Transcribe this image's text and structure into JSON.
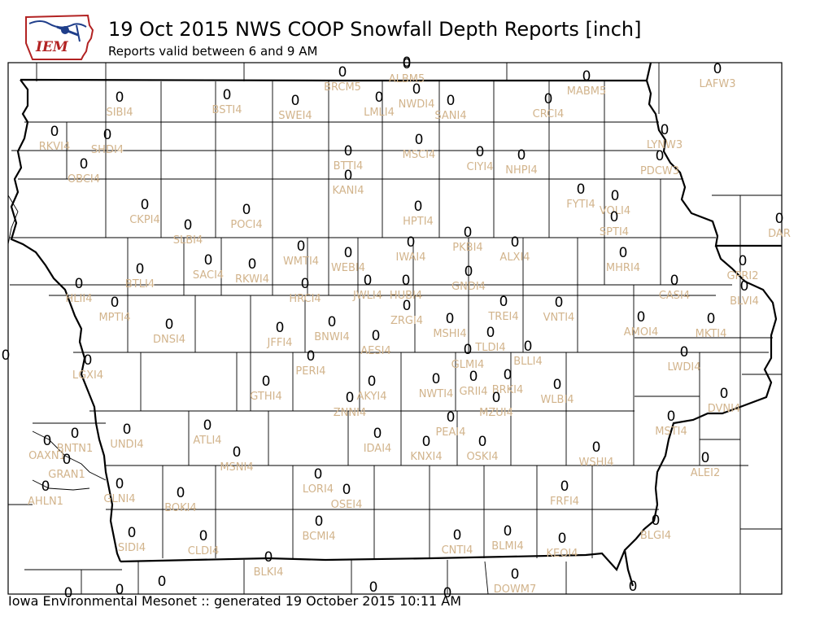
{
  "header": {
    "logo_text": "IEM",
    "title": "19 Oct 2015 NWS COOP Snowfall Depth Reports [inch]",
    "subtitle": "Reports valid between 6 and 9 AM"
  },
  "footer": "Iowa Environmental Mesonet :: generated 19 October 2015 10:11 AM",
  "colors": {
    "station_label": "#d2b48c",
    "value": "#000000",
    "border": "#000000"
  },
  "stations": [
    {
      "id": "ALBM5",
      "value": "0"
    },
    {
      "id": "BRCM5",
      "value": "0"
    },
    {
      "id": "MABM5",
      "value": "0"
    },
    {
      "id": "LAFW3",
      "value": "0"
    },
    {
      "id": "SIBI4",
      "value": "0"
    },
    {
      "id": "BSTI4",
      "value": "0"
    },
    {
      "id": "SWEI4",
      "value": "0"
    },
    {
      "id": "LMLI4",
      "value": "0"
    },
    {
      "id": "NWDI4",
      "value": "0"
    },
    {
      "id": "SANI4",
      "value": "0"
    },
    {
      "id": "CRCI4",
      "value": "0"
    },
    {
      "id": "RKVI4",
      "value": "0"
    },
    {
      "id": "SHDI4",
      "value": "0"
    },
    {
      "id": "LYNW3",
      "value": "0"
    },
    {
      "id": "MSCI4",
      "value": "0"
    },
    {
      "id": "BTTI4",
      "value": "0"
    },
    {
      "id": "CIYI4",
      "value": "0"
    },
    {
      "id": "NHPI4",
      "value": "0"
    },
    {
      "id": "PDCW3",
      "value": "0"
    },
    {
      "id": "OBCI4",
      "value": "0"
    },
    {
      "id": "KANI4",
      "value": "0"
    },
    {
      "id": "FYTI4",
      "value": "0"
    },
    {
      "id": "VOLI4",
      "value": "0"
    },
    {
      "id": "CKPI4",
      "value": "0"
    },
    {
      "id": "POCI4",
      "value": "0"
    },
    {
      "id": "HPTI4",
      "value": "0"
    },
    {
      "id": "DAR",
      "value": "0"
    },
    {
      "id": "SLBI4",
      "value": "0"
    },
    {
      "id": "SPTI4",
      "value": "0"
    },
    {
      "id": "PKBI4",
      "value": "0"
    },
    {
      "id": "WMTI4",
      "value": "0"
    },
    {
      "id": "IWAI4",
      "value": "0"
    },
    {
      "id": "ALXI4",
      "value": "0"
    },
    {
      "id": "SACI4",
      "value": "0"
    },
    {
      "id": "WEBI4",
      "value": "0"
    },
    {
      "id": "RKWI4",
      "value": "0"
    },
    {
      "id": "MHRI4",
      "value": "0"
    },
    {
      "id": "GPRI2",
      "value": "0"
    },
    {
      "id": "BTLI4",
      "value": "0"
    },
    {
      "id": "GNDI4",
      "value": "0"
    },
    {
      "id": "HLII4",
      "value": "0"
    },
    {
      "id": "HRCI4",
      "value": "0"
    },
    {
      "id": "JWLI4",
      "value": "0"
    },
    {
      "id": "HUBI4",
      "value": "0"
    },
    {
      "id": "CASI4",
      "value": "0"
    },
    {
      "id": "BLVI4",
      "value": "0"
    },
    {
      "id": "MPTI4",
      "value": "0"
    },
    {
      "id": "TREI4",
      "value": "0"
    },
    {
      "id": "VNTI4",
      "value": "0"
    },
    {
      "id": "ZRGI4",
      "value": "0"
    },
    {
      "id": "AMOI4",
      "value": "0"
    },
    {
      "id": "DNSI4",
      "value": "0"
    },
    {
      "id": "BNWI4",
      "value": "0"
    },
    {
      "id": "MSHI4",
      "value": "0"
    },
    {
      "id": "MKTI4",
      "value": "0"
    },
    {
      "id": "JFFI4",
      "value": "0"
    },
    {
      "id": "AESI4",
      "value": "0"
    },
    {
      "id": "TLDI4",
      "value": "0"
    },
    {
      "id": "BLLI4",
      "value": "0"
    },
    {
      "id": "LWDI4",
      "value": "0"
    },
    {
      "id": "LGXI4",
      "value": "0"
    },
    {
      "id": "PERI4",
      "value": "0"
    },
    {
      "id": "GLMI4",
      "value": "0"
    },
    {
      "id": "GTHI4",
      "value": "0"
    },
    {
      "id": "AKYI4",
      "value": "0"
    },
    {
      "id": "NWTI4",
      "value": "0"
    },
    {
      "id": "GRII4",
      "value": "0"
    },
    {
      "id": "BRKI4",
      "value": "0"
    },
    {
      "id": "WLBI4",
      "value": "0"
    },
    {
      "id": "ZNNI4",
      "value": "0"
    },
    {
      "id": "MZUI4",
      "value": "0"
    },
    {
      "id": "DVNI4",
      "value": "0"
    },
    {
      "id": "UNDI4",
      "value": "0"
    },
    {
      "id": "ATLI4",
      "value": "0"
    },
    {
      "id": "PEAI4",
      "value": "0"
    },
    {
      "id": "MSTI4",
      "value": "0"
    },
    {
      "id": "BNTN1",
      "value": "0"
    },
    {
      "id": "IDAI4",
      "value": "0"
    },
    {
      "id": "OAXN1",
      "value": "0"
    },
    {
      "id": "KNXI4",
      "value": "0"
    },
    {
      "id": "OSKI4",
      "value": "0"
    },
    {
      "id": "MSNI4",
      "value": "0"
    },
    {
      "id": "WSHI4",
      "value": "0"
    },
    {
      "id": "GRAN1",
      "value": "0"
    },
    {
      "id": "ALEI2",
      "value": "0"
    },
    {
      "id": "LORI4",
      "value": "0"
    },
    {
      "id": "GLNI4",
      "value": "0"
    },
    {
      "id": "OSEI4",
      "value": "0"
    },
    {
      "id": "FRFI4",
      "value": "0"
    },
    {
      "id": "AHLN1",
      "value": "0"
    },
    {
      "id": "BOKI4",
      "value": "0"
    },
    {
      "id": "BLGI4",
      "value": "0"
    },
    {
      "id": "BCMI4",
      "value": "0"
    },
    {
      "id": "SIDI4",
      "value": "0"
    },
    {
      "id": "CLDI4",
      "value": "0"
    },
    {
      "id": "BLMI4",
      "value": "0"
    },
    {
      "id": "CNTI4",
      "value": "0"
    },
    {
      "id": "KEOI4",
      "value": "0"
    },
    {
      "id": "BLKI4",
      "value": "0"
    },
    {
      "id": "DOWM7",
      "value": "0"
    }
  ],
  "partial_values": [
    "0",
    "0",
    "0",
    "0",
    "0",
    "0",
    "0",
    "0"
  ]
}
